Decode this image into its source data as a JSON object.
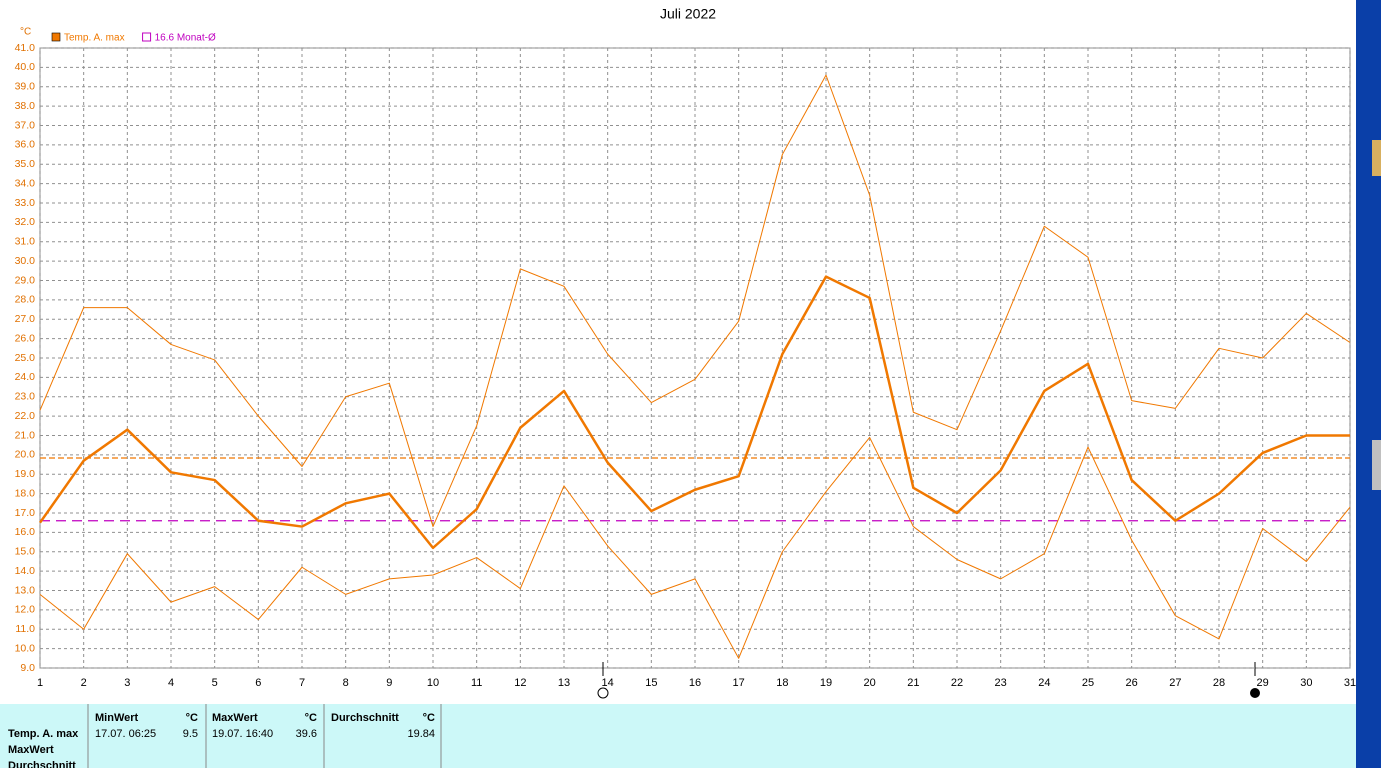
{
  "chart_data": {
    "type": "line",
    "title": "Juli 2022",
    "y_unit": "°C",
    "x": [
      1,
      2,
      3,
      4,
      5,
      6,
      7,
      8,
      9,
      10,
      11,
      12,
      13,
      14,
      15,
      16,
      17,
      18,
      19,
      20,
      21,
      22,
      23,
      24,
      25,
      26,
      27,
      28,
      29,
      30,
      31
    ],
    "xlim": [
      1,
      31
    ],
    "ylim": [
      9,
      41
    ],
    "grid": true,
    "yticks": [
      {
        "value": 9,
        "label": "9.0"
      },
      {
        "value": 10,
        "label": "10.0"
      },
      {
        "value": 11,
        "label": "11.0"
      },
      {
        "value": 12,
        "label": "12.0"
      },
      {
        "value": 13,
        "label": "13.0"
      },
      {
        "value": 14,
        "label": "14.0"
      },
      {
        "value": 15,
        "label": "15.0"
      },
      {
        "value": 16,
        "label": "16.0"
      },
      {
        "value": 17,
        "label": "17.0"
      },
      {
        "value": 18,
        "label": "18.0"
      },
      {
        "value": 19,
        "label": "19.0"
      },
      {
        "value": 20,
        "label": "20.0"
      },
      {
        "value": 21,
        "label": "21.0"
      },
      {
        "value": 22,
        "label": "22.0"
      },
      {
        "value": 23,
        "label": "23.0"
      },
      {
        "value": 24,
        "label": "24.0"
      },
      {
        "value": 25,
        "label": "25.0"
      },
      {
        "value": 26,
        "label": "26.0"
      },
      {
        "value": 27,
        "label": "27.0"
      },
      {
        "value": 28,
        "label": "28.0"
      },
      {
        "value": 29,
        "label": "29.0"
      },
      {
        "value": 30,
        "label": "30.0"
      },
      {
        "value": 31,
        "label": "31.0"
      },
      {
        "value": 32,
        "label": "32.0"
      },
      {
        "value": 33,
        "label": "33.0"
      },
      {
        "value": 34,
        "label": "34.0"
      },
      {
        "value": 35,
        "label": "35.0"
      },
      {
        "value": 36,
        "label": "36.0"
      },
      {
        "value": 37,
        "label": "37.0"
      },
      {
        "value": 38,
        "label": "38.0"
      },
      {
        "value": 39,
        "label": "39.0"
      },
      {
        "value": 40,
        "label": "40.0"
      },
      {
        "value": 41,
        "label": "41.0"
      }
    ],
    "series": [
      {
        "name": "Temp. A. max",
        "color": "#f07800",
        "values": [
          16.5,
          19.7,
          21.3,
          19.1,
          18.7,
          16.6,
          16.3,
          17.5,
          18.0,
          15.2,
          17.2,
          21.4,
          23.3,
          19.6,
          17.1,
          18.2,
          18.9,
          25.2,
          29.2,
          28.1,
          18.3,
          17.0,
          19.2,
          23.3,
          24.7,
          18.7,
          16.6,
          18.0,
          20.1,
          21.0,
          21.0
        ]
      },
      {
        "color": "#f07800",
        "values": [
          22.3,
          27.6,
          27.6,
          25.7,
          24.9,
          22.0,
          19.4,
          23.0,
          23.7,
          16.3,
          21.5,
          29.6,
          28.7,
          25.2,
          22.7,
          23.9,
          26.9,
          35.5,
          39.6,
          33.4,
          22.2,
          21.3,
          26.4,
          31.8,
          30.2,
          22.8,
          22.4,
          25.5,
          25.0,
          27.3,
          25.8
        ]
      },
      {
        "color": "#f07800",
        "values": [
          12.8,
          11.0,
          14.9,
          12.4,
          13.2,
          11.5,
          14.2,
          12.8,
          13.6,
          13.8,
          14.7,
          13.1,
          18.4,
          15.3,
          12.8,
          13.6,
          9.5,
          15.0,
          18.1,
          20.9,
          16.3,
          14.6,
          13.6,
          14.9,
          20.4,
          15.6,
          11.7,
          10.5,
          16.2,
          14.5,
          17.3
        ]
      }
    ],
    "reference_lines": [
      {
        "value": 19.84,
        "color": "#f07800"
      },
      {
        "value": 16.6,
        "label": "16.6 Monat-Ø",
        "color": "#c000c0"
      }
    ]
  },
  "table": {
    "row_labels": [
      "Temp. A. max",
      "MaxWert",
      "Durchschnitt"
    ],
    "columns": [
      {
        "header": "MinWert",
        "unit": "°C",
        "time": "17.07. 06:25",
        "value": 9.5
      },
      {
        "header": "MaxWert",
        "unit": "°C",
        "time": "19.07. 16:40",
        "value": 39.6
      },
      {
        "header": "Durchschnitt",
        "unit": "°C",
        "value": 19.84
      }
    ]
  }
}
